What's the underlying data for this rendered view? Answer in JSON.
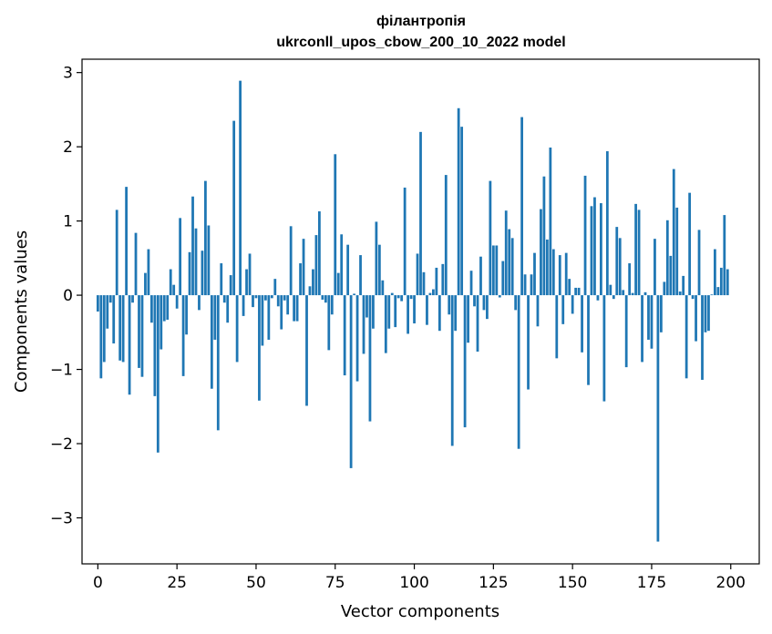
{
  "chart_data": {
    "type": "bar",
    "title": "філантропія",
    "subtitle": "ukrconll_upos_cbow_200_10_2022 model",
    "xlabel": "Vector components",
    "ylabel": "Components values",
    "xlim": [
      -5,
      209
    ],
    "ylim": [
      -3.62,
      3.18
    ],
    "xticks": [
      0,
      25,
      50,
      75,
      100,
      125,
      150,
      175,
      200
    ],
    "yticks": [
      -3,
      -2,
      -1,
      0,
      1,
      2,
      3
    ],
    "grid": false,
    "bar_color": "#1f77b4",
    "values": [
      -0.22,
      -1.12,
      -0.9,
      -0.45,
      -0.1,
      -0.65,
      1.15,
      -0.88,
      -0.9,
      1.46,
      -1.34,
      -0.1,
      0.84,
      -0.98,
      -1.1,
      0.3,
      0.62,
      -0.37,
      -1.36,
      -2.12,
      -0.73,
      -0.35,
      -0.33,
      0.35,
      0.14,
      -0.18,
      1.04,
      -1.09,
      -0.53,
      0.58,
      1.33,
      0.9,
      -0.2,
      0.6,
      1.54,
      0.94,
      -1.26,
      -0.6,
      -1.82,
      0.43,
      -0.1,
      -0.37,
      0.27,
      2.35,
      -0.9,
      2.89,
      -0.28,
      0.35,
      0.56,
      -0.16,
      -0.04,
      -1.42,
      -0.68,
      -0.07,
      -0.6,
      -0.04,
      0.22,
      -0.15,
      -0.46,
      -0.07,
      -0.26,
      0.93,
      -0.35,
      -0.35,
      0.43,
      0.76,
      -1.49,
      0.12,
      0.35,
      0.81,
      1.13,
      -0.06,
      -0.1,
      -0.74,
      -0.26,
      1.9,
      0.3,
      0.82,
      -1.08,
      0.68,
      -2.33,
      0.02,
      -1.16,
      0.54,
      -0.79,
      -0.3,
      -1.7,
      -0.45,
      0.99,
      0.68,
      0.2,
      -0.78,
      -0.45,
      0.03,
      -0.43,
      -0.04,
      -0.08,
      1.45,
      -0.52,
      -0.05,
      -0.38,
      0.56,
      2.2,
      0.31,
      -0.4,
      0.03,
      0.08,
      0.37,
      -0.48,
      0.42,
      1.62,
      -0.26,
      -2.03,
      -0.48,
      2.52,
      2.27,
      -1.78,
      -0.64,
      0.33,
      -0.15,
      -0.76,
      0.52,
      -0.2,
      -0.32,
      1.54,
      0.67,
      0.67,
      -0.03,
      0.46,
      1.14,
      0.89,
      0.77,
      -0.2,
      -2.07,
      2.4,
      0.28,
      -1.27,
      0.28,
      0.57,
      -0.42,
      1.16,
      1.6,
      0.75,
      1.99,
      0.62,
      -0.85,
      0.54,
      -0.39,
      0.57,
      0.22,
      -0.25,
      0.1,
      0.1,
      -0.77,
      1.61,
      -1.21,
      1.2,
      1.32,
      -0.07,
      1.24,
      -1.43,
      1.94,
      0.14,
      -0.05,
      0.92,
      0.77,
      0.07,
      -0.97,
      0.43,
      0.03,
      1.23,
      1.15,
      -0.9,
      0.04,
      -0.6,
      -0.72,
      0.76,
      -3.32,
      -0.5,
      0.18,
      1.01,
      0.53,
      1.7,
      1.18,
      0.05,
      0.26,
      -1.12,
      1.38,
      -0.05,
      -0.62,
      0.88,
      -1.14,
      -0.5,
      -0.48,
      0.01,
      0.62,
      0.11,
      0.37,
      1.08,
      0.35
    ]
  }
}
